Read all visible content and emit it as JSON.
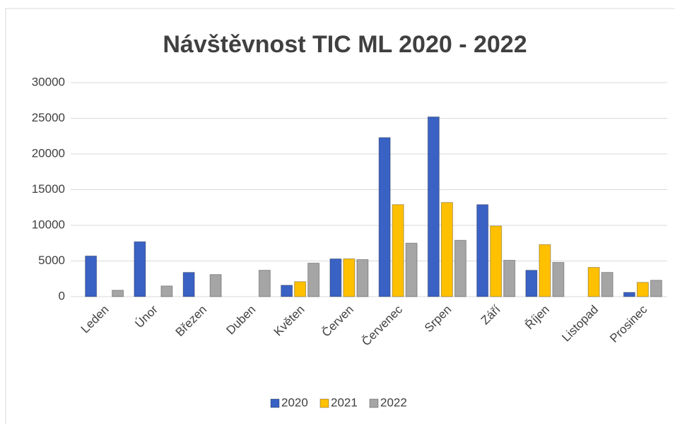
{
  "chart_data": {
    "type": "bar",
    "title": "Návštěvnost TIC ML 2020 - 2022",
    "categories": [
      "Leden",
      "Únor",
      "Březen",
      "Duben",
      "Květen",
      "Červen",
      "Červenec",
      "Srpen",
      "Září",
      "Říjen",
      "Listopad",
      "Prosinec"
    ],
    "series": [
      {
        "name": "2020",
        "color": "#3a62c4",
        "values": [
          5700,
          7700,
          3400,
          null,
          1600,
          5300,
          22300,
          25200,
          12900,
          3700,
          null,
          600
        ]
      },
      {
        "name": "2021",
        "color": "#ffc000",
        "values": [
          null,
          null,
          null,
          null,
          2100,
          5300,
          12900,
          13200,
          9900,
          7300,
          4100,
          2000
        ]
      },
      {
        "name": "2022",
        "color": "#a5a5a5",
        "values": [
          900,
          1500,
          3100,
          3700,
          4700,
          5200,
          7500,
          7900,
          5100,
          4800,
          3400,
          2300
        ]
      }
    ],
    "ylim": [
      0,
      30000
    ],
    "yticks": [
      0,
      5000,
      10000,
      15000,
      20000,
      25000,
      30000
    ],
    "grid": true,
    "legend": "bottom"
  }
}
